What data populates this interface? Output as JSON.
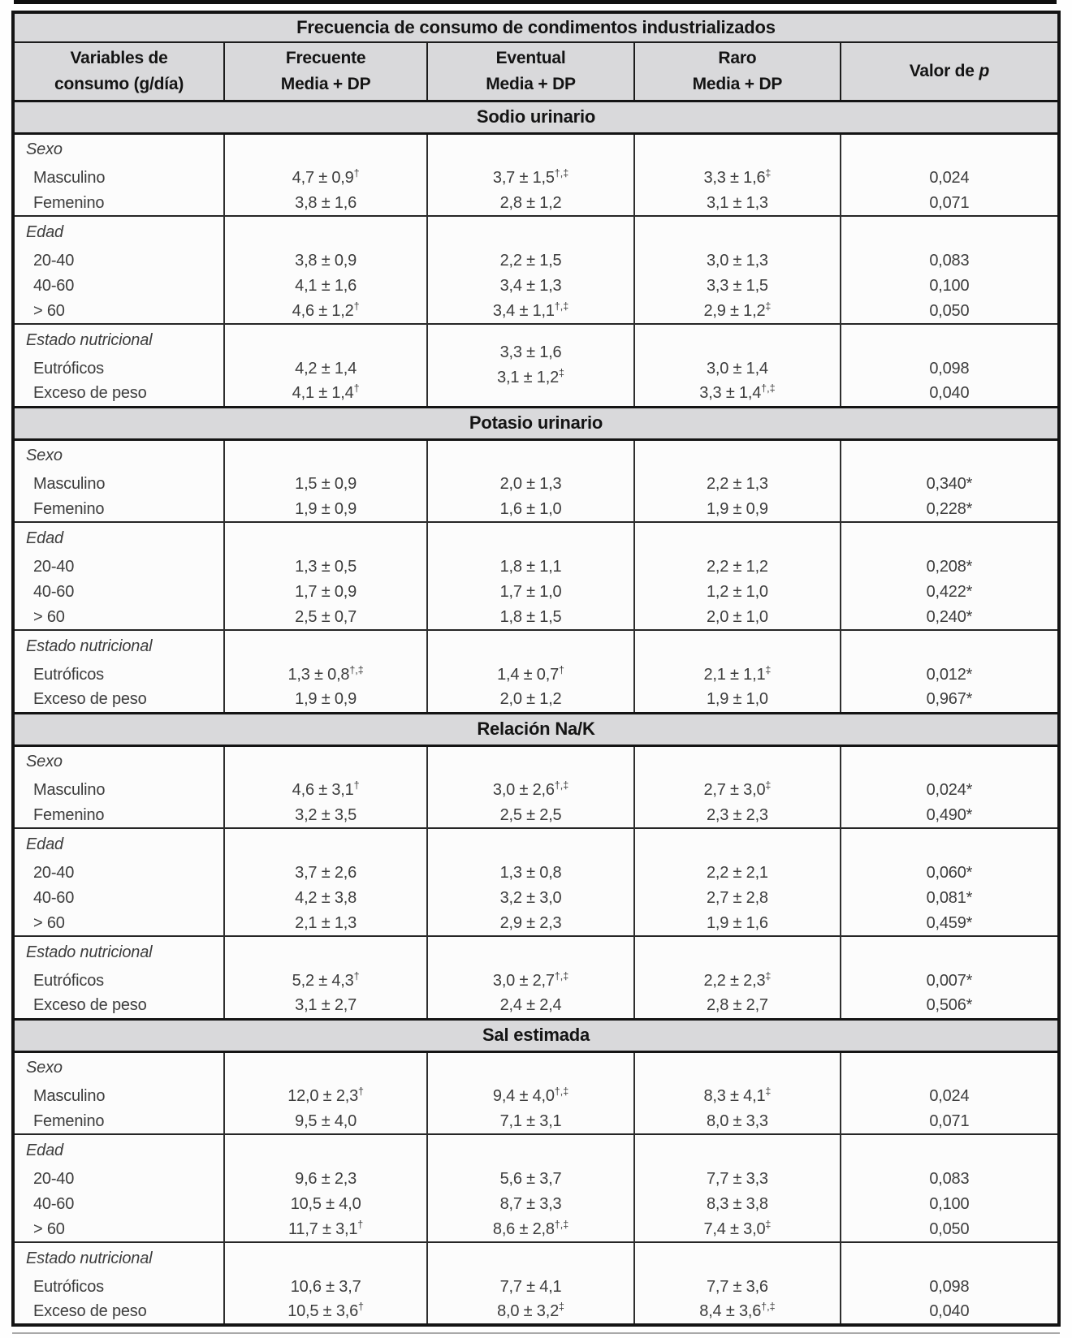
{
  "table": {
    "title": "Frecuencia de consumo de condimentos industrializados",
    "columns": [
      {
        "line1": "Variables de",
        "line2": "consumo (g/día)"
      },
      {
        "line1": "Frecuente",
        "line2": "Media + DP"
      },
      {
        "line1": "Eventual",
        "line2": "Media + DP"
      },
      {
        "line1": "Raro",
        "line2": "Media + DP"
      },
      {
        "line1": "Valor de",
        "line2": "p"
      }
    ],
    "sections": [
      {
        "name": "Sodio urinario",
        "blocks": [
          {
            "label": "Sexo",
            "rows": [
              {
                "label": "Masculino",
                "cells": [
                  {
                    "v": "4,7 ± 0,9",
                    "s": "†"
                  },
                  {
                    "v": "3,7 ± 1,5",
                    "s": "†,‡"
                  },
                  {
                    "v": "3,3 ± 1,6",
                    "s": "‡"
                  },
                  {
                    "v": "0,024"
                  }
                ]
              },
              {
                "label": "Femenino",
                "cells": [
                  {
                    "v": "3,8 ± 1,6"
                  },
                  {
                    "v": "2,8 ± 1,2"
                  },
                  {
                    "v": "3,1 ± 1,3"
                  },
                  {
                    "v": "0,071"
                  }
                ]
              }
            ]
          },
          {
            "label": "Edad",
            "rows": [
              {
                "label": "20-40",
                "cells": [
                  {
                    "v": "3,8 ± 0,9"
                  },
                  {
                    "v": "2,2 ± 1,5"
                  },
                  {
                    "v": "3,0 ± 1,3"
                  },
                  {
                    "v": "0,083"
                  }
                ]
              },
              {
                "label": "40-60",
                "cells": [
                  {
                    "v": "4,1 ± 1,6"
                  },
                  {
                    "v": "3,4 ± 1,3"
                  },
                  {
                    "v": "3,3 ± 1,5"
                  },
                  {
                    "v": "0,100"
                  }
                ]
              },
              {
                "label": "> 60",
                "cells": [
                  {
                    "v": "4,6 ± 1,2",
                    "s": "†"
                  },
                  {
                    "v": "3,4 ± 1,1",
                    "s": "†,‡"
                  },
                  {
                    "v": "2,9 ± 1,2",
                    "s": "‡"
                  },
                  {
                    "v": "0,050"
                  }
                ]
              }
            ]
          },
          {
            "label": "Estado nutricional",
            "merged": {
              "col": 1,
              "lines": [
                {
                  "v": "3,3 ± 1,6"
                },
                {
                  "v": "3,1 ± 1,2",
                  "s": "‡"
                }
              ]
            },
            "rows": [
              {
                "label": "Eutróficos",
                "cells": [
                  {
                    "v": "4,2 ± 1,4"
                  },
                  null,
                  {
                    "v": "3,0 ± 1,4"
                  },
                  {
                    "v": "0,098"
                  }
                ]
              },
              {
                "label": "Exceso de peso",
                "cells": [
                  {
                    "v": "4,1 ± 1,4",
                    "s": "†"
                  },
                  null,
                  {
                    "v": "3,3 ± 1,4",
                    "s": "†,‡"
                  },
                  {
                    "v": "0,040"
                  }
                ]
              }
            ]
          }
        ]
      },
      {
        "name": "Potasio urinario",
        "blocks": [
          {
            "label": "Sexo",
            "rows": [
              {
                "label": "Masculino",
                "cells": [
                  {
                    "v": "1,5 ± 0,9"
                  },
                  {
                    "v": "2,0 ± 1,3"
                  },
                  {
                    "v": "2,2 ± 1,3"
                  },
                  {
                    "v": "0,340*"
                  }
                ]
              },
              {
                "label": "Femenino",
                "cells": [
                  {
                    "v": "1,9 ± 0,9"
                  },
                  {
                    "v": "1,6 ± 1,0"
                  },
                  {
                    "v": "1,9 ± 0,9"
                  },
                  {
                    "v": "0,228*"
                  }
                ]
              }
            ]
          },
          {
            "label": "Edad",
            "rows": [
              {
                "label": "20-40",
                "cells": [
                  {
                    "v": "1,3 ± 0,5"
                  },
                  {
                    "v": "1,8 ± 1,1"
                  },
                  {
                    "v": "2,2 ± 1,2"
                  },
                  {
                    "v": "0,208*"
                  }
                ]
              },
              {
                "label": "40-60",
                "cells": [
                  {
                    "v": "1,7 ± 0,9"
                  },
                  {
                    "v": "1,7 ± 1,0"
                  },
                  {
                    "v": "1,2 ± 1,0"
                  },
                  {
                    "v": "0,422*"
                  }
                ]
              },
              {
                "label": "> 60",
                "cells": [
                  {
                    "v": "2,5 ± 0,7"
                  },
                  {
                    "v": "1,8 ± 1,5"
                  },
                  {
                    "v": "2,0 ± 1,0"
                  },
                  {
                    "v": "0,240*"
                  }
                ]
              }
            ]
          },
          {
            "label": "Estado nutricional",
            "rows": [
              {
                "label": "Eutróficos",
                "cells": [
                  {
                    "v": "1,3 ± 0,8",
                    "s": "†,‡"
                  },
                  {
                    "v": "1,4 ± 0,7",
                    "s": "†"
                  },
                  {
                    "v": "2,1 ± 1,1",
                    "s": "‡"
                  },
                  {
                    "v": "0,012*"
                  }
                ]
              },
              {
                "label": "Exceso de peso",
                "cells": [
                  {
                    "v": "1,9 ± 0,9"
                  },
                  {
                    "v": "2,0 ± 1,2"
                  },
                  {
                    "v": "1,9 ± 1,0"
                  },
                  {
                    "v": "0,967*"
                  }
                ]
              }
            ]
          }
        ]
      },
      {
        "name": "Relación Na/K",
        "blocks": [
          {
            "label": "Sexo",
            "rows": [
              {
                "label": "Masculino",
                "cells": [
                  {
                    "v": "4,6 ± 3,1",
                    "s": "†"
                  },
                  {
                    "v": "3,0 ± 2,6",
                    "s": "†,‡"
                  },
                  {
                    "v": "2,7 ± 3,0",
                    "s": "‡"
                  },
                  {
                    "v": "0,024*"
                  }
                ]
              },
              {
                "label": "Femenino",
                "cells": [
                  {
                    "v": "3,2 ± 3,5"
                  },
                  {
                    "v": "2,5 ± 2,5"
                  },
                  {
                    "v": "2,3 ± 2,3"
                  },
                  {
                    "v": "0,490*"
                  }
                ]
              }
            ]
          },
          {
            "label": "Edad",
            "rows": [
              {
                "label": "20-40",
                "cells": [
                  {
                    "v": "3,7 ± 2,6"
                  },
                  {
                    "v": "1,3 ± 0,8"
                  },
                  {
                    "v": "2,2 ± 2,1"
                  },
                  {
                    "v": "0,060*"
                  }
                ]
              },
              {
                "label": "40-60",
                "cells": [
                  {
                    "v": "4,2 ± 3,8"
                  },
                  {
                    "v": "3,2 ± 3,0"
                  },
                  {
                    "v": "2,7 ± 2,8"
                  },
                  {
                    "v": "0,081*"
                  }
                ]
              },
              {
                "label": "> 60",
                "cells": [
                  {
                    "v": "2,1 ± 1,3"
                  },
                  {
                    "v": "2,9 ± 2,3"
                  },
                  {
                    "v": "1,9 ± 1,6"
                  },
                  {
                    "v": "0,459*"
                  }
                ]
              }
            ]
          },
          {
            "label": "Estado nutricional",
            "rows": [
              {
                "label": "Eutróficos",
                "cells": [
                  {
                    "v": "5,2 ± 4,3",
                    "s": "†"
                  },
                  {
                    "v": "3,0 ± 2,7",
                    "s": "†,‡"
                  },
                  {
                    "v": "2,2 ± 2,3",
                    "s": "‡"
                  },
                  {
                    "v": "0,007*"
                  }
                ]
              },
              {
                "label": "Exceso de peso",
                "cells": [
                  {
                    "v": "3,1 ± 2,7"
                  },
                  {
                    "v": "2,4 ± 2,4"
                  },
                  {
                    "v": "2,8 ± 2,7"
                  },
                  {
                    "v": "0,506*"
                  }
                ]
              }
            ]
          }
        ]
      },
      {
        "name": "Sal estimada",
        "blocks": [
          {
            "label": "Sexo",
            "rows": [
              {
                "label": "Masculino",
                "cells": [
                  {
                    "v": "12,0 ± 2,3",
                    "s": "†"
                  },
                  {
                    "v": "9,4 ± 4,0",
                    "s": "†,‡"
                  },
                  {
                    "v": "8,3 ± 4,1",
                    "s": "‡"
                  },
                  {
                    "v": "0,024"
                  }
                ]
              },
              {
                "label": "Femenino",
                "cells": [
                  {
                    "v": "9,5 ± 4,0"
                  },
                  {
                    "v": "7,1 ± 3,1"
                  },
                  {
                    "v": "8,0 ± 3,3"
                  },
                  {
                    "v": "0,071"
                  }
                ]
              }
            ]
          },
          {
            "label": "Edad",
            "rows": [
              {
                "label": "20-40",
                "cells": [
                  {
                    "v": "9,6 ± 2,3"
                  },
                  {
                    "v": "5,6 ± 3,7"
                  },
                  {
                    "v": "7,7 ± 3,3"
                  },
                  {
                    "v": "0,083"
                  }
                ]
              },
              {
                "label": "40-60",
                "cells": [
                  {
                    "v": "10,5 ± 4,0"
                  },
                  {
                    "v": "8,7 ± 3,3"
                  },
                  {
                    "v": "8,3 ± 3,8"
                  },
                  {
                    "v": "0,100"
                  }
                ]
              },
              {
                "label": "> 60",
                "cells": [
                  {
                    "v": "11,7 ± 3,1",
                    "s": "†"
                  },
                  {
                    "v": "8,6 ± 2,8",
                    "s": "†,‡"
                  },
                  {
                    "v": "7,4 ± 3,0",
                    "s": "‡"
                  },
                  {
                    "v": "0,050"
                  }
                ]
              }
            ]
          },
          {
            "label": "Estado nutricional",
            "rows": [
              {
                "label": "Eutróficos",
                "cells": [
                  {
                    "v": "10,6 ± 3,7"
                  },
                  {
                    "v": "7,7 ± 4,1"
                  },
                  {
                    "v": "7,7 ± 3,6"
                  },
                  {
                    "v": "0,098"
                  }
                ]
              },
              {
                "label": "Exceso de peso",
                "cells": [
                  {
                    "v": "10,5 ± 3,6",
                    "s": "†"
                  },
                  {
                    "v": "8,0 ± 3,2",
                    "s": "‡"
                  },
                  {
                    "v": "8,4 ± 3,6",
                    "s": "†,‡"
                  },
                  {
                    "v": "0,040"
                  }
                ]
              }
            ]
          }
        ]
      }
    ],
    "colors": {
      "band_background": "#d9d9db",
      "border_dark": "#141414",
      "body_text": "#3d3d3d"
    }
  }
}
